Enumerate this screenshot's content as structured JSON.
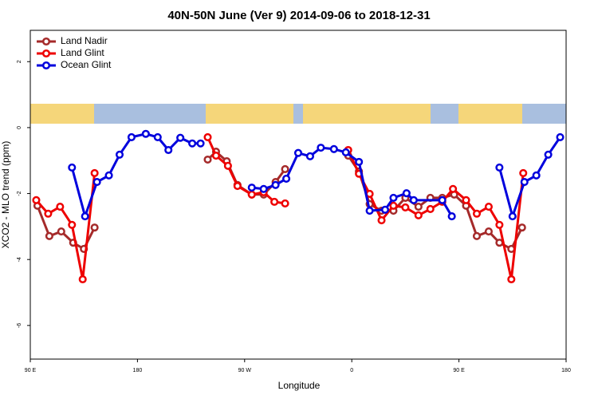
{
  "chart_data": {
    "type": "line",
    "title": "40N-50N June (Ver 9)   2014-09-06 to 2018-12-31",
    "x_label": "Longitude",
    "y_label": "XCO2 - MLO trend (ppm)",
    "xlim": [
      90,
      540
    ],
    "xticks": [
      {
        "value": 90,
        "label": "90 E"
      },
      {
        "value": 180,
        "label": "180"
      },
      {
        "value": 270,
        "label": "90 W"
      },
      {
        "value": 360,
        "label": "0"
      },
      {
        "value": 450,
        "label": "90 E"
      },
      {
        "value": 540,
        "label": "180"
      }
    ],
    "ylim": [
      -7.02,
      2.95
    ],
    "yticks": [
      -6,
      -4,
      -2,
      0,
      2
    ],
    "legend": "top-left",
    "series": [
      {
        "name": "Land Nadir",
        "color": "#a52a2a",
        "x": [
          96,
          106,
          116,
          126,
          135,
          144,
          null,
          239,
          246,
          255,
          264,
          276,
          286,
          296,
          304,
          null,
          357,
          366,
          375,
          385,
          395,
          405,
          416,
          426,
          436,
          446,
          456,
          465,
          475,
          484,
          494,
          503
        ],
        "values": [
          -2.37,
          -3.29,
          -3.15,
          -3.49,
          -3.68,
          -3.03,
          null,
          -0.97,
          -0.73,
          -1.02,
          -1.74,
          -2.03,
          -2.03,
          -1.65,
          -1.26,
          null,
          -0.85,
          -1.33,
          -2.32,
          -2.52,
          -2.52,
          -2.13,
          -2.4,
          -2.13,
          -2.13,
          -2.03,
          -2.37,
          -3.29,
          -3.15,
          -3.49,
          -3.68,
          -3.03
        ]
      },
      {
        "name": "Land Glint",
        "color": "#ee0000",
        "x": [
          95,
          105,
          115,
          125,
          134,
          144,
          null,
          239,
          246,
          256,
          264,
          276,
          286,
          295,
          304,
          null,
          357,
          366,
          375,
          385,
          395,
          405,
          416,
          426,
          436,
          445,
          456,
          465,
          475,
          484,
          494,
          504
        ],
        "values": [
          -2.2,
          -2.61,
          -2.4,
          -2.95,
          -4.6,
          -1.38,
          null,
          -0.29,
          -0.85,
          -1.16,
          -1.77,
          -2.03,
          -1.96,
          -2.25,
          -2.3,
          null,
          -0.68,
          -1.4,
          -2.01,
          -2.81,
          -2.37,
          -2.42,
          -2.66,
          -2.47,
          -2.25,
          -1.86,
          -2.2,
          -2.61,
          -2.4,
          -2.95,
          -4.6,
          -1.38
        ]
      },
      {
        "name": "Ocean Glint",
        "color": "#0000dd",
        "x": [
          125,
          136,
          146,
          156,
          165,
          175,
          187,
          197,
          206,
          216,
          226,
          233,
          null,
          276,
          286,
          296,
          305,
          315,
          325,
          334,
          345,
          355,
          366,
          375,
          388,
          395,
          406,
          412,
          436,
          444,
          null,
          484,
          495,
          505,
          515,
          525,
          535
        ],
        "values": [
          -1.21,
          -2.69,
          -1.65,
          -1.45,
          -0.82,
          -0.29,
          -0.19,
          -0.29,
          -0.68,
          -0.31,
          -0.48,
          -0.48,
          null,
          -1.82,
          -1.86,
          -1.74,
          -1.55,
          -0.77,
          -0.87,
          -0.61,
          -0.65,
          -0.75,
          -1.04,
          -2.52,
          -2.49,
          -2.13,
          -1.99,
          -2.2,
          -2.2,
          -2.69,
          null,
          -1.21,
          -2.69,
          -1.65,
          -1.45,
          -0.82,
          -0.29
        ]
      }
    ]
  }
}
